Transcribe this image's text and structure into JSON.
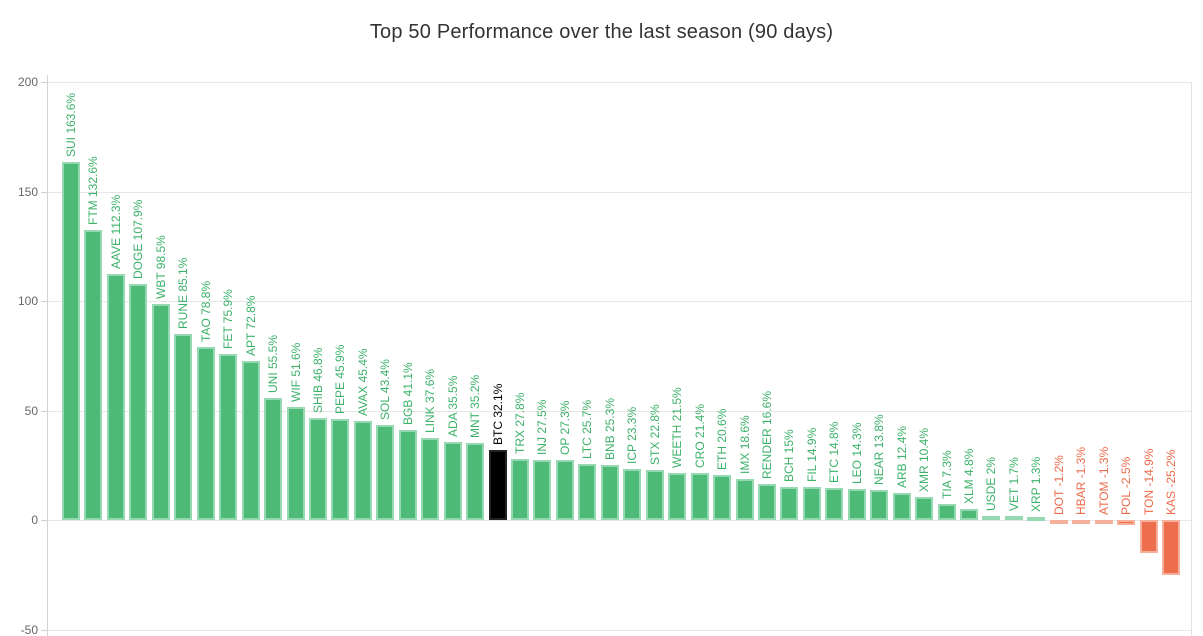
{
  "chart_data": {
    "type": "bar",
    "title": "Top 50 Performance over the last season (90 days)",
    "ylabel": "",
    "xlabel": "",
    "ylim": [
      -50,
      200
    ],
    "yticks": [
      200,
      150,
      100,
      50,
      0,
      -50
    ],
    "grid": true,
    "legend": "none",
    "highlight_category": "BTC",
    "colors": {
      "positive_bar": "#4dba77",
      "positive_bar_border": "#96d8b1",
      "negative_bar": "#ed6e4d",
      "negative_bar_border": "#f5b09b",
      "highlight_bar": "#000000",
      "positive_label": "#3cb169",
      "negative_label": "#ed6a4a",
      "highlight_label": "#000000",
      "axis_text": "#666666",
      "gridline": "#e7e7e7",
      "title_text": "#333333",
      "background": "#ffffff"
    },
    "categories": [
      "SUI",
      "FTM",
      "AAVE",
      "DOGE",
      "WBT",
      "RUNE",
      "TAO",
      "FET",
      "APT",
      "UNI",
      "WIF",
      "SHIB",
      "PEPE",
      "AVAX",
      "SOL",
      "BGB",
      "LINK",
      "ADA",
      "MNT",
      "BTC",
      "TRX",
      "INJ",
      "OP",
      "LTC",
      "BNB",
      "ICP",
      "STX",
      "WEETH",
      "CRO",
      "ETH",
      "IMX",
      "RENDER",
      "BCH",
      "FIL",
      "ETC",
      "LEO",
      "NEAR",
      "ARB",
      "XMR",
      "TIA",
      "XLM",
      "USDE",
      "VET",
      "XRP",
      "DOT",
      "HBAR",
      "ATOM",
      "POL",
      "TON",
      "KAS"
    ],
    "values": [
      163.6,
      132.6,
      112.3,
      107.9,
      98.5,
      85.1,
      78.8,
      75.9,
      72.8,
      55.5,
      51.6,
      46.8,
      45.9,
      45.4,
      43.4,
      41.1,
      37.6,
      35.5,
      35.2,
      32.1,
      27.8,
      27.5,
      27.3,
      25.7,
      25.3,
      23.3,
      22.8,
      21.5,
      21.4,
      20.6,
      18.6,
      16.6,
      15,
      14.9,
      14.8,
      14.3,
      13.8,
      12.4,
      10.4,
      7.3,
      4.8,
      2,
      1.7,
      1.3,
      -1.2,
      -1.3,
      -1.3,
      -2.5,
      -14.9,
      -25.2
    ],
    "bar_labels": [
      "SUI 163.6%",
      "FTM 132.6%",
      "AAVE 112.3%",
      "DOGE 107.9%",
      "WBT 98.5%",
      "RUNE 85.1%",
      "TAO 78.8%",
      "FET 75.9%",
      "APT 72.8%",
      "UNI 55.5%",
      "WIF 51.6%",
      "SHIB 46.8%",
      "PEPE 45.9%",
      "AVAX 45.4%",
      "SOL 43.4%",
      "BGB 41.1%",
      "LINK 37.6%",
      "ADA 35.5%",
      "MNT 35.2%",
      "BTC 32.1%",
      "TRX 27.8%",
      "INJ 27.5%",
      "OP 27.3%",
      "LTC 25.7%",
      "BNB 25.3%",
      "ICP 23.3%",
      "STX 22.8%",
      "WEETH 21.5%",
      "CRO 21.4%",
      "ETH 20.6%",
      "IMX 18.6%",
      "RENDER 16.6%",
      "BCH 15%",
      "FIL 14.9%",
      "ETC 14.8%",
      "LEO 14.3%",
      "NEAR 13.8%",
      "ARB 12.4%",
      "XMR 10.4%",
      "TIA 7.3%",
      "XLM 4.8%",
      "USDE 2%",
      "VET 1.7%",
      "XRP 1.3%",
      "DOT -1.2%",
      "HBAR -1.3%",
      "ATOM -1.3%",
      "POL -2.5%",
      "TON -14.9%",
      "KAS -25.2%"
    ]
  }
}
